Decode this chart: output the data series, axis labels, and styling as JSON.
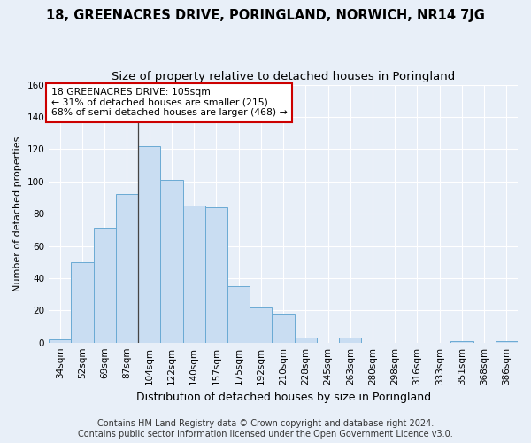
{
  "title": "18, GREENACRES DRIVE, PORINGLAND, NORWICH, NR14 7JG",
  "subtitle": "Size of property relative to detached houses in Poringland",
  "xlabel": "Distribution of detached houses by size in Poringland",
  "ylabel": "Number of detached properties",
  "categories": [
    "34sqm",
    "52sqm",
    "69sqm",
    "87sqm",
    "104sqm",
    "122sqm",
    "140sqm",
    "157sqm",
    "175sqm",
    "192sqm",
    "210sqm",
    "228sqm",
    "245sqm",
    "263sqm",
    "280sqm",
    "298sqm",
    "316sqm",
    "333sqm",
    "351sqm",
    "368sqm",
    "386sqm"
  ],
  "values": [
    2,
    50,
    71,
    92,
    122,
    101,
    85,
    84,
    35,
    22,
    18,
    3,
    0,
    3,
    0,
    0,
    0,
    0,
    1,
    0,
    1
  ],
  "bar_color": "#c9ddf2",
  "bar_edge_color": "#6aaad4",
  "highlight_line_index": 4,
  "annotation_text": "18 GREENACRES DRIVE: 105sqm\n← 31% of detached houses are smaller (215)\n68% of semi-detached houses are larger (468) →",
  "annotation_box_facecolor": "#ffffff",
  "annotation_box_edgecolor": "#cc0000",
  "ylim": [
    0,
    160
  ],
  "yticks": [
    0,
    20,
    40,
    60,
    80,
    100,
    120,
    140,
    160
  ],
  "background_color": "#e8eff8",
  "grid_color": "#ffffff",
  "title_fontsize": 10.5,
  "subtitle_fontsize": 9.5,
  "xlabel_fontsize": 9,
  "ylabel_fontsize": 8,
  "tick_fontsize": 7.5,
  "annotation_fontsize": 7.8,
  "footer_fontsize": 7,
  "footer_line1": "Contains HM Land Registry data © Crown copyright and database right 2024.",
  "footer_line2": "Contains public sector information licensed under the Open Government Licence v3.0."
}
